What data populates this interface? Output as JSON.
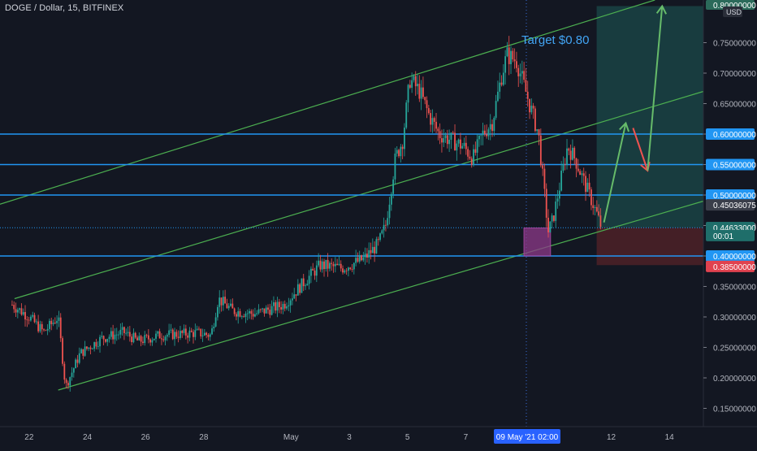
{
  "header": {
    "symbol_title": "DOGE / Dollar, 15, BITFINEX"
  },
  "colors": {
    "background": "#131722",
    "candle_up": "#26a69a",
    "candle_down": "#ef5350",
    "channel_line": "#4caf50",
    "level_line": "#2196f3",
    "target_zone": "#1b4a49",
    "stop_zone": "#4e2127",
    "entry_box": "#8e3a8a",
    "arrow_up": "#66bb6a",
    "arrow_down": "#ef5350",
    "annotation_text": "#42a5f5"
  },
  "chart_data": {
    "type": "candlestick",
    "title": "DOGE / Dollar, 15, BITFINEX",
    "currency": "USD",
    "x_axis": {
      "type": "date",
      "ticks": [
        {
          "date": "2021-04-22",
          "label": "22"
        },
        {
          "date": "2021-04-24",
          "label": "24"
        },
        {
          "date": "2021-04-26",
          "label": "26"
        },
        {
          "date": "2021-04-28",
          "label": "28"
        },
        {
          "date": "2021-05-01",
          "label": "May"
        },
        {
          "date": "2021-05-03",
          "label": "3"
        },
        {
          "date": "2021-05-05",
          "label": "5"
        },
        {
          "date": "2021-05-07",
          "label": "7"
        },
        {
          "date": "2021-05-12",
          "label": "12"
        },
        {
          "date": "2021-05-14",
          "label": "14"
        }
      ],
      "crosshair_label": "09 May '21   02:00",
      "range": [
        "2021-04-21T00:00",
        "2021-05-15T04:00"
      ]
    },
    "y_axis": {
      "range": [
        0.12,
        0.82
      ],
      "ticks": [
        "0.15000000",
        "0.20000000",
        "0.25000000",
        "0.30000000",
        "0.35000000",
        "0.40000000",
        "0.45000000",
        "0.50000000",
        "0.55000000",
        "0.60000000",
        "0.65000000",
        "0.70000000",
        "0.75000000"
      ],
      "top_badge": "0.80000000",
      "unit_label": "USD"
    },
    "price_path": [
      {
        "t": "2021-04-21T10:00",
        "p": 0.32
      },
      {
        "t": "2021-04-22T00:00",
        "p": 0.3
      },
      {
        "t": "2021-04-22T12:00",
        "p": 0.275
      },
      {
        "t": "2021-04-23T00:00",
        "p": 0.3
      },
      {
        "t": "2021-04-23T06:00",
        "p": 0.185
      },
      {
        "t": "2021-04-23T18:00",
        "p": 0.24
      },
      {
        "t": "2021-04-24T12:00",
        "p": 0.265
      },
      {
        "t": "2021-04-25T06:00",
        "p": 0.275
      },
      {
        "t": "2021-04-25T18:00",
        "p": 0.26
      },
      {
        "t": "2021-04-26T12:00",
        "p": 0.27
      },
      {
        "t": "2021-04-27T06:00",
        "p": 0.272
      },
      {
        "t": "2021-04-27T18:00",
        "p": 0.274
      },
      {
        "t": "2021-04-28T06:00",
        "p": 0.27
      },
      {
        "t": "2021-04-28T12:00",
        "p": 0.33
      },
      {
        "t": "2021-04-29T00:00",
        "p": 0.31
      },
      {
        "t": "2021-04-29T18:00",
        "p": 0.305
      },
      {
        "t": "2021-04-30T18:00",
        "p": 0.32
      },
      {
        "t": "2021-05-01T12:00",
        "p": 0.36
      },
      {
        "t": "2021-05-02T00:00",
        "p": 0.385
      },
      {
        "t": "2021-05-02T18:00",
        "p": 0.38
      },
      {
        "t": "2021-05-03T12:00",
        "p": 0.395
      },
      {
        "t": "2021-05-04T00:00",
        "p": 0.42
      },
      {
        "t": "2021-05-04T06:00",
        "p": 0.45
      },
      {
        "t": "2021-05-04T14:00",
        "p": 0.56
      },
      {
        "t": "2021-05-04T20:00",
        "p": 0.59
      },
      {
        "t": "2021-05-05T02:00",
        "p": 0.69
      },
      {
        "t": "2021-05-05T10:00",
        "p": 0.67
      },
      {
        "t": "2021-05-05T18:00",
        "p": 0.63
      },
      {
        "t": "2021-05-06T02:00",
        "p": 0.6
      },
      {
        "t": "2021-05-06T12:00",
        "p": 0.59
      },
      {
        "t": "2021-05-06T22:00",
        "p": 0.58
      },
      {
        "t": "2021-05-07T06:00",
        "p": 0.56
      },
      {
        "t": "2021-05-07T14:00",
        "p": 0.6
      },
      {
        "t": "2021-05-07T22:00",
        "p": 0.62
      },
      {
        "t": "2021-05-08T06:00",
        "p": 0.7
      },
      {
        "t": "2021-05-08T10:00",
        "p": 0.73
      },
      {
        "t": "2021-05-08T18:00",
        "p": 0.72
      },
      {
        "t": "2021-05-09T00:00",
        "p": 0.68
      },
      {
        "t": "2021-05-09T06:00",
        "p": 0.64
      },
      {
        "t": "2021-05-09T12:00",
        "p": 0.6
      },
      {
        "t": "2021-05-09T16:00",
        "p": 0.52
      },
      {
        "t": "2021-05-09T20:00",
        "p": 0.44
      },
      {
        "t": "2021-05-10T00:00",
        "p": 0.46
      },
      {
        "t": "2021-05-10T06:00",
        "p": 0.52
      },
      {
        "t": "2021-05-10T12:00",
        "p": 0.58
      },
      {
        "t": "2021-05-10T18:00",
        "p": 0.56
      },
      {
        "t": "2021-05-11T00:00",
        "p": 0.53
      },
      {
        "t": "2021-05-11T06:00",
        "p": 0.5
      },
      {
        "t": "2021-05-11T12:00",
        "p": 0.47
      },
      {
        "t": "2021-05-11T16:00",
        "p": 0.446
      }
    ],
    "horizontal_levels": [
      0.6,
      0.55,
      0.5,
      0.4
    ],
    "dotted_level": 0.44633,
    "channel": {
      "upper": [
        {
          "t": "2021-04-21T00:00",
          "p": 0.485
        },
        {
          "t": "2021-05-13T12:00",
          "p": 0.82
        }
      ],
      "middle": [
        {
          "t": "2021-04-21T12:00",
          "p": 0.33
        },
        {
          "t": "2021-05-15T04:00",
          "p": 0.67
        }
      ],
      "lower": [
        {
          "t": "2021-04-23T00:00",
          "p": 0.18
        },
        {
          "t": "2021-05-15T04:00",
          "p": 0.49
        }
      ]
    },
    "target_zone": {
      "start": "2021-05-11T12:00",
      "end": "2021-05-15T04:00",
      "low": 0.44633,
      "high": 0.81
    },
    "stop_zone": {
      "start": "2021-05-11T12:00",
      "end": "2021-05-15T04:00",
      "low": 0.385,
      "high": 0.44633
    },
    "entry_box": {
      "start": "2021-05-09T00:00",
      "end": "2021-05-09T22:00",
      "low": 0.4,
      "high": 0.446
    },
    "projection_arrows": [
      {
        "kind": "up",
        "from": {
          "t": "2021-05-11T18:00",
          "p": 0.455
        },
        "to": {
          "t": "2021-05-12T12:00",
          "p": 0.618
        }
      },
      {
        "kind": "down",
        "from": {
          "t": "2021-05-12T18:00",
          "p": 0.61
        },
        "to": {
          "t": "2021-05-13T06:00",
          "p": 0.54
        }
      },
      {
        "kind": "up",
        "from": {
          "t": "2021-05-13T06:00",
          "p": 0.54
        },
        "to": {
          "t": "2021-05-13T18:00",
          "p": 0.81
        }
      }
    ],
    "annotations": [
      {
        "text": "Target $0.80",
        "t": "2021-05-08T22:00",
        "p": 0.755
      }
    ],
    "price_labels": [
      {
        "value": "0.60000000",
        "p": 0.6,
        "style": "level"
      },
      {
        "value": "0.55000000",
        "p": 0.55,
        "style": "level"
      },
      {
        "value": "0.50000000",
        "p": 0.5,
        "style": "level"
      },
      {
        "value": "0.45036075",
        "p": 0.4838,
        "style": "gray"
      },
      {
        "value": "0.44633000",
        "p": 0.4466,
        "style": "teal"
      },
      {
        "value": "00:01",
        "p": 0.4335,
        "style": "teal-sub"
      },
      {
        "value": "0.40000000",
        "p": 0.4,
        "style": "level"
      },
      {
        "value": "0.38500000",
        "p": 0.3829,
        "style": "red"
      }
    ]
  }
}
